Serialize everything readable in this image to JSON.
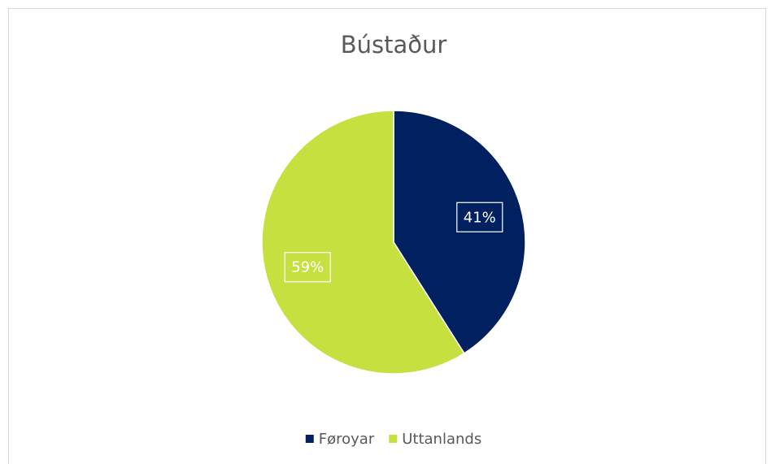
{
  "chart_data": {
    "type": "pie",
    "title": "Bústaður",
    "categories": [
      "Føroyar",
      "Uttanlands"
    ],
    "values": [
      41,
      59
    ],
    "value_labels": [
      "41%",
      "59%"
    ],
    "colors": [
      "#002060",
      "#c5e03f"
    ],
    "legend": "bottom"
  }
}
